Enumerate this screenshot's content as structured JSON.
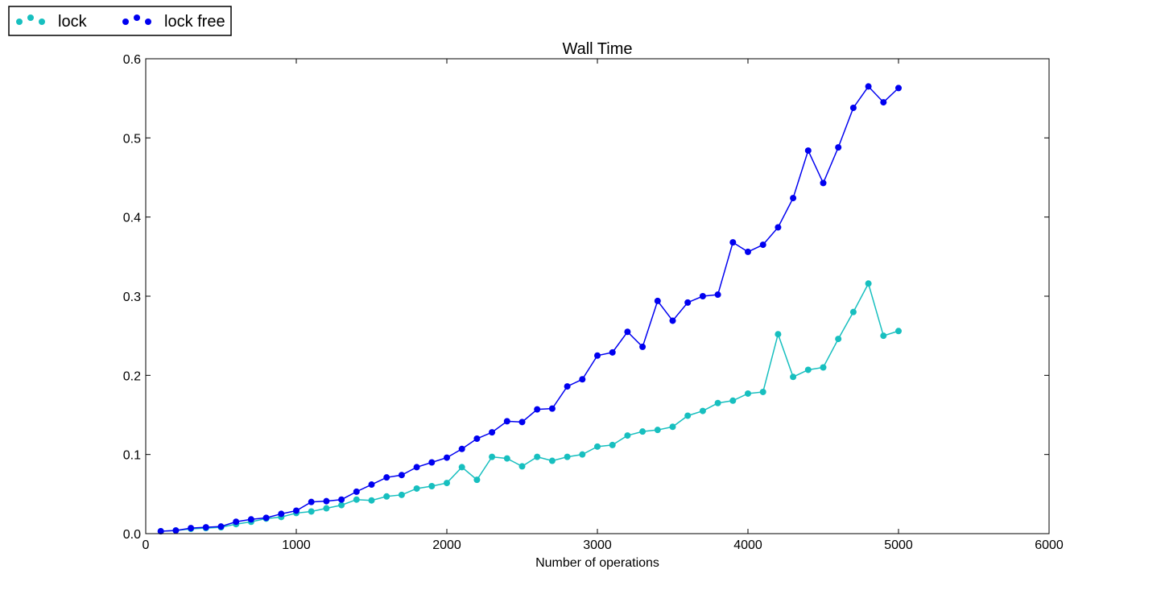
{
  "chart_data": {
    "type": "line",
    "title": "Wall Time",
    "xlabel": "Number of operations",
    "ylabel": "",
    "xlim": [
      0,
      6000
    ],
    "ylim": [
      0,
      0.6
    ],
    "xticks": [
      "0",
      "1000",
      "2000",
      "3000",
      "4000",
      "5000",
      "6000"
    ],
    "yticks": [
      "0.0",
      "0.1",
      "0.2",
      "0.3",
      "0.4",
      "0.5",
      "0.6"
    ],
    "grid": false,
    "legend_placement": "top-left, outside",
    "x": [
      100,
      200,
      300,
      400,
      500,
      600,
      700,
      800,
      900,
      1000,
      1100,
      1200,
      1300,
      1400,
      1500,
      1600,
      1700,
      1800,
      1900,
      2000,
      2100,
      2200,
      2300,
      2400,
      2500,
      2600,
      2700,
      2800,
      2900,
      3000,
      3100,
      3200,
      3300,
      3400,
      3500,
      3600,
      3700,
      3800,
      3900,
      4000,
      4100,
      4200,
      4300,
      4400,
      4500,
      4600,
      4700,
      4800,
      4900,
      5000
    ],
    "series": [
      {
        "name": "lock",
        "color": "#17bfbf",
        "values": [
          0.003,
          0.004,
          0.006,
          0.007,
          0.008,
          0.012,
          0.015,
          0.019,
          0.021,
          0.026,
          0.028,
          0.032,
          0.036,
          0.043,
          0.042,
          0.047,
          0.049,
          0.057,
          0.06,
          0.064,
          0.084,
          0.068,
          0.097,
          0.095,
          0.085,
          0.097,
          0.092,
          0.097,
          0.1,
          0.11,
          0.112,
          0.124,
          0.129,
          0.131,
          0.135,
          0.149,
          0.155,
          0.165,
          0.168,
          0.177,
          0.179,
          0.252,
          0.198,
          0.207,
          0.21,
          0.246,
          0.28,
          0.316,
          0.25,
          0.256
        ]
      },
      {
        "name": "lock free",
        "color": "#0000f0",
        "values": [
          0.003,
          0.004,
          0.007,
          0.008,
          0.009,
          0.015,
          0.018,
          0.02,
          0.025,
          0.029,
          0.04,
          0.041,
          0.043,
          0.053,
          0.062,
          0.071,
          0.074,
          0.084,
          0.09,
          0.096,
          0.107,
          0.12,
          0.128,
          0.142,
          0.141,
          0.157,
          0.158,
          0.186,
          0.195,
          0.225,
          0.229,
          0.255,
          0.236,
          0.294,
          0.269,
          0.292,
          0.3,
          0.302,
          0.368,
          0.356,
          0.365,
          0.387,
          0.424,
          0.484,
          0.443,
          0.488,
          0.538,
          0.565,
          0.545,
          0.563
        ]
      }
    ]
  }
}
